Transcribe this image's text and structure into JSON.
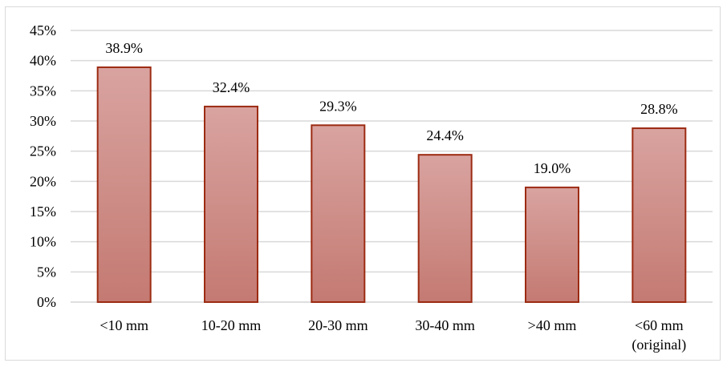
{
  "chart_data": {
    "type": "bar",
    "categories": [
      "<10 mm",
      "10-20 mm",
      "20-30 mm",
      "30-40 mm",
      ">40 mm",
      "<60 mm\n(original)"
    ],
    "values": [
      38.9,
      32.4,
      29.3,
      24.4,
      19.0,
      28.8
    ],
    "value_labels": [
      "38.9%",
      "32.4%",
      "29.3%",
      "24.4%",
      "19.0%",
      "28.8%"
    ],
    "title": "",
    "xlabel": "",
    "ylabel": "",
    "ylim": [
      0,
      45
    ],
    "yticks": [
      0,
      5,
      10,
      15,
      20,
      25,
      30,
      35,
      40,
      45
    ],
    "ytick_labels": [
      "0%",
      "5%",
      "10%",
      "15%",
      "20%",
      "25%",
      "30%",
      "35%",
      "40%",
      "45%"
    ],
    "grid": true,
    "legend": "none",
    "colors": {
      "bar_fill_top": "#d9a3a0",
      "bar_fill_bottom": "#c47a72",
      "bar_edge": "#9c2b12",
      "grid": "#d9d9d9"
    }
  }
}
